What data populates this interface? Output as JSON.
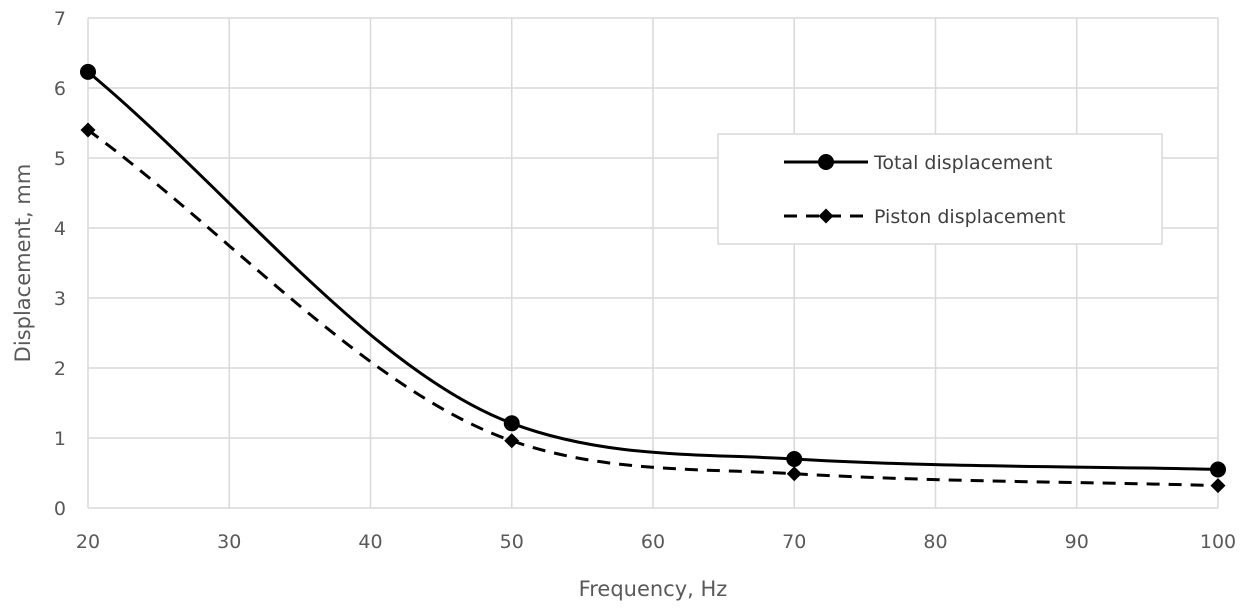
{
  "chart_data": {
    "type": "line",
    "title": "",
    "xlabel": "Frequency, Hz",
    "ylabel": "Displacement, mm",
    "xlim": [
      20,
      100
    ],
    "ylim": [
      0,
      7
    ],
    "x_ticks": [
      20,
      30,
      40,
      50,
      60,
      70,
      80,
      90,
      100
    ],
    "y_ticks": [
      0,
      1,
      2,
      3,
      4,
      5,
      6,
      7
    ],
    "grid": true,
    "legend_position": "right",
    "smooth": true,
    "series": [
      {
        "name": "Total displacement",
        "x": [
          20,
          50,
          70,
          100
        ],
        "y": [
          6.23,
          1.21,
          0.7,
          0.55
        ],
        "color": "#000000",
        "line_style": "solid",
        "marker": "circle"
      },
      {
        "name": "Piston displacement",
        "x": [
          20,
          50,
          70,
          100
        ],
        "y": [
          5.4,
          0.96,
          0.49,
          0.32
        ],
        "color": "#000000",
        "line_style": "dashed",
        "marker": "diamond"
      }
    ]
  }
}
